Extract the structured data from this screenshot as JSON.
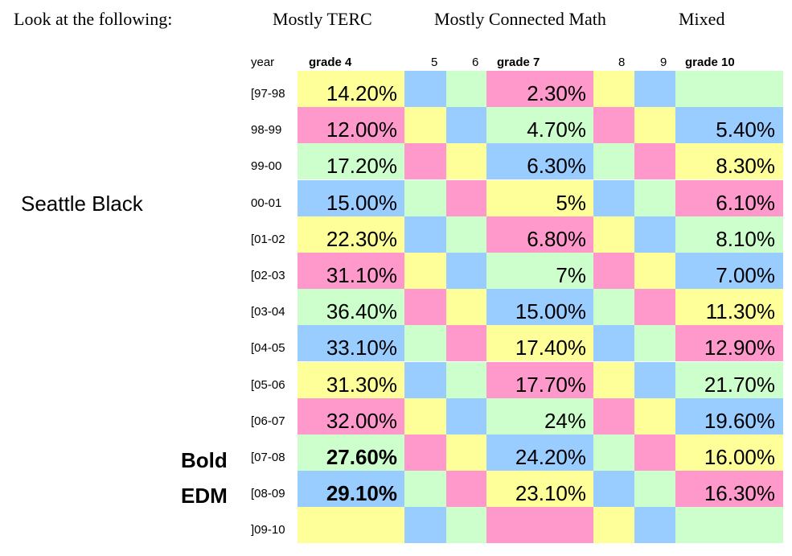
{
  "header": {
    "intro": "Look at the following:",
    "terc": "Mostly TERC",
    "connected_math": "Mostly Connected Math",
    "mixed": "Mixed"
  },
  "labels": {
    "seattle": "Seattle Black",
    "bold": "Bold",
    "edm": "EDM"
  },
  "colors": {
    "Y": "#ffff99",
    "P": "#ff99cc",
    "G": "#ccffcc",
    "B": "#99ccff"
  },
  "columns": [
    "year",
    "grade 4",
    "5",
    "6",
    "grade 7",
    "8",
    "9",
    "grade 10"
  ],
  "rows": [
    {
      "year": "[97-98",
      "colors": [
        "Y",
        "B",
        "G",
        "P",
        "Y",
        "B",
        "G"
      ],
      "values": [
        "14.20%",
        "",
        "",
        "2.30%",
        "",
        "",
        ""
      ],
      "bold": [
        false,
        false,
        false,
        false,
        false,
        false,
        false
      ]
    },
    {
      "year": "98-99",
      "colors": [
        "P",
        "Y",
        "B",
        "G",
        "P",
        "Y",
        "B"
      ],
      "values": [
        "12.00%",
        "",
        "",
        "4.70%",
        "",
        "",
        "5.40%"
      ],
      "bold": [
        false,
        false,
        false,
        false,
        false,
        false,
        false
      ]
    },
    {
      "year": "99-00",
      "colors": [
        "G",
        "P",
        "Y",
        "B",
        "G",
        "P",
        "Y"
      ],
      "values": [
        "17.20%",
        "",
        "",
        "6.30%",
        "",
        "",
        "8.30%"
      ],
      "bold": [
        false,
        false,
        false,
        false,
        false,
        false,
        false
      ]
    },
    {
      "year": "00-01",
      "colors": [
        "B",
        "G",
        "P",
        "Y",
        "B",
        "G",
        "P"
      ],
      "values": [
        "15.00%",
        "",
        "",
        "5%",
        "",
        "",
        "6.10%"
      ],
      "bold": [
        false,
        false,
        false,
        false,
        false,
        false,
        false
      ]
    },
    {
      "year": "[01-02",
      "colors": [
        "Y",
        "B",
        "G",
        "P",
        "Y",
        "B",
        "G"
      ],
      "values": [
        "22.30%",
        "",
        "",
        "6.80%",
        "",
        "",
        "8.10%"
      ],
      "bold": [
        false,
        false,
        false,
        false,
        false,
        false,
        false
      ]
    },
    {
      "year": "[02-03",
      "colors": [
        "P",
        "Y",
        "B",
        "G",
        "P",
        "Y",
        "B"
      ],
      "values": [
        "31.10%",
        "",
        "",
        "7%",
        "",
        "",
        "7.00%"
      ],
      "bold": [
        false,
        false,
        false,
        false,
        false,
        false,
        false
      ]
    },
    {
      "year": "[03-04",
      "colors": [
        "G",
        "P",
        "Y",
        "B",
        "G",
        "P",
        "Y"
      ],
      "values": [
        "36.40%",
        "",
        "",
        "15.00%",
        "",
        "",
        "11.30%"
      ],
      "bold": [
        false,
        false,
        false,
        false,
        false,
        false,
        false
      ]
    },
    {
      "year": "[04-05",
      "colors": [
        "B",
        "G",
        "P",
        "Y",
        "B",
        "G",
        "P"
      ],
      "values": [
        "33.10%",
        "",
        "",
        "17.40%",
        "",
        "",
        "12.90%"
      ],
      "bold": [
        false,
        false,
        false,
        false,
        false,
        false,
        false
      ]
    },
    {
      "year": "[05-06",
      "colors": [
        "Y",
        "B",
        "G",
        "P",
        "Y",
        "B",
        "G"
      ],
      "values": [
        "31.30%",
        "",
        "",
        "17.70%",
        "",
        "",
        "21.70%"
      ],
      "bold": [
        false,
        false,
        false,
        false,
        false,
        false,
        false
      ]
    },
    {
      "year": "[06-07",
      "colors": [
        "P",
        "Y",
        "B",
        "G",
        "P",
        "Y",
        "B"
      ],
      "values": [
        "32.00%",
        "",
        "",
        "24%",
        "",
        "",
        "19.60%"
      ],
      "bold": [
        false,
        false,
        false,
        false,
        false,
        false,
        false
      ]
    },
    {
      "year": "[07-08",
      "colors": [
        "G",
        "P",
        "Y",
        "B",
        "G",
        "P",
        "Y"
      ],
      "values": [
        "27.60%",
        "",
        "",
        "24.20%",
        "",
        "",
        "16.00%"
      ],
      "bold": [
        true,
        false,
        false,
        false,
        false,
        false,
        false
      ]
    },
    {
      "year": "[08-09",
      "colors": [
        "B",
        "G",
        "P",
        "Y",
        "B",
        "G",
        "P"
      ],
      "values": [
        "29.10%",
        "",
        "",
        "23.10%",
        "",
        "",
        "16.30%"
      ],
      "bold": [
        true,
        false,
        false,
        false,
        false,
        false,
        false
      ]
    },
    {
      "year": "]09-10",
      "colors": [
        "Y",
        "B",
        "G",
        "P",
        "Y",
        "B",
        "G"
      ],
      "values": [
        "",
        "",
        "",
        "",
        "",
        "",
        ""
      ],
      "bold": [
        false,
        false,
        false,
        false,
        false,
        false,
        false
      ]
    }
  ]
}
